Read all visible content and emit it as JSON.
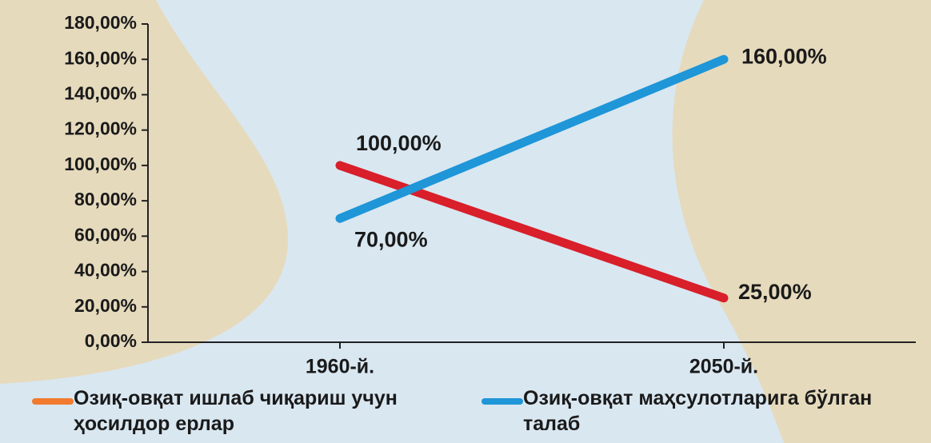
{
  "chart_data": {
    "type": "line",
    "categories": [
      "1960-й.",
      "2050-й."
    ],
    "series": [
      {
        "name": "Озиқ-овқат ишлаб чиқариш учун ҳосилдор ерлар",
        "color": "#d81f2a",
        "legend_color": "#f07b2e",
        "values": [
          100,
          25
        ],
        "value_labels": [
          "100,00%",
          "25,00%"
        ]
      },
      {
        "name": "Озиқ-овқат маҳсулотларига бўлган талаб",
        "color": "#1e96d8",
        "legend_color": "#1e96d8",
        "values": [
          70,
          160
        ],
        "value_labels": [
          "70,00%",
          "160,00%"
        ]
      }
    ],
    "ylim": [
      0,
      180
    ],
    "yticks": [
      {
        "value": 0,
        "label": "0,00%"
      },
      {
        "value": 20,
        "label": "20,00%"
      },
      {
        "value": 40,
        "label": "40,00%"
      },
      {
        "value": 60,
        "label": "60,00%"
      },
      {
        "value": 80,
        "label": "80,00%"
      },
      {
        "value": 100,
        "label": "100,00%"
      },
      {
        "value": 120,
        "label": "120,00%"
      },
      {
        "value": 140,
        "label": "140,00%"
      },
      {
        "value": 160,
        "label": "160,00%"
      },
      {
        "value": 180,
        "label": "180,00%"
      }
    ]
  }
}
